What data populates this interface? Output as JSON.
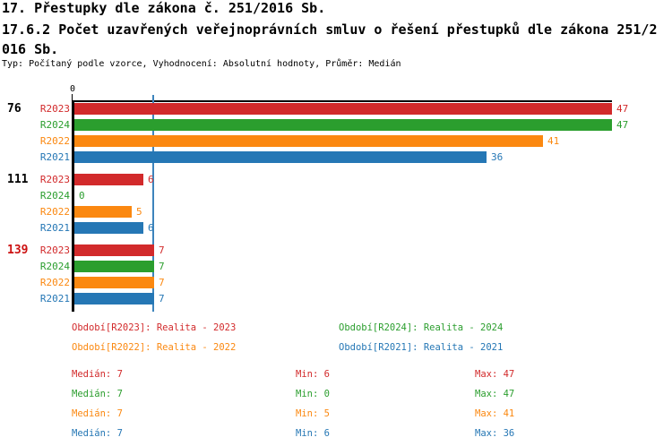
{
  "header": {
    "title_line1": "17. Přestupky dle zákona č. 251/2016 Sb.",
    "title_line2": "17.6.2 Počet uzavřených veřejnoprávních smluv o řešení přestupků dle zákona 251/2",
    "title_line3": "016 Sb.",
    "meta": "Typ: Počítaný podle vzorce, Vyhodnocení: Absolutní hodnoty, Průměr: Medián"
  },
  "colors": {
    "r2023": "#d22a2b",
    "r2024": "#2b9e2e",
    "r2022": "#fb8810",
    "r2021": "#2577b5",
    "median_line": "#3d84bc",
    "highlight": "#cc1111",
    "axis": "#000000"
  },
  "chart_data": {
    "type": "bar",
    "orientation": "horizontal",
    "title": "",
    "xlabel": "",
    "ylabel": "",
    "xlim": [
      0,
      47
    ],
    "axis_origin_label": "0",
    "median_value": 7,
    "grid": false,
    "categories": [
      "76",
      "111",
      "139"
    ],
    "category_highlight": [
      false,
      false,
      true
    ],
    "series": [
      {
        "name": "R2023",
        "color_key": "r2023",
        "values": [
          47,
          6,
          7
        ]
      },
      {
        "name": "R2024",
        "color_key": "r2024",
        "values": [
          47,
          0,
          7
        ]
      },
      {
        "name": "R2022",
        "color_key": "r2022",
        "values": [
          41,
          5,
          7
        ]
      },
      {
        "name": "R2021",
        "color_key": "r2021",
        "values": [
          36,
          6,
          7
        ]
      }
    ]
  },
  "legend": {
    "items": [
      {
        "label": "Období[R2023]: Realita - 2023",
        "color_key": "r2023"
      },
      {
        "label": "Období[R2024]: Realita - 2024",
        "color_key": "r2024"
      },
      {
        "label": "Období[R2022]: Realita - 2022",
        "color_key": "r2022"
      },
      {
        "label": "Období[R2021]: Realita - 2021",
        "color_key": "r2021"
      }
    ]
  },
  "stats": {
    "rows": [
      {
        "median_label": "Medián: 7",
        "min_label": "Min: 6",
        "max_label": "Max: 47",
        "color_key": "r2023"
      },
      {
        "median_label": "Medián: 7",
        "min_label": "Min: 0",
        "max_label": "Max: 47",
        "color_key": "r2024"
      },
      {
        "median_label": "Medián: 7",
        "min_label": "Min: 5",
        "max_label": "Max: 41",
        "color_key": "r2022"
      },
      {
        "median_label": "Medián: 7",
        "min_label": "Min: 6",
        "max_label": "Max: 36",
        "color_key": "r2021"
      }
    ]
  }
}
